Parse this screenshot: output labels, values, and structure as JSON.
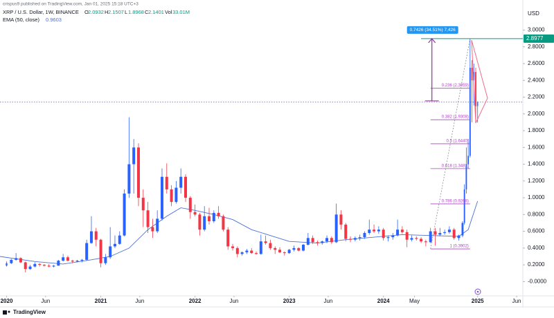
{
  "header": {
    "author_line": "crispus9 published on TradingView.com, Jan 01, 2025 15:18 UTC+3",
    "symbol": "XRP / U.S. Dollar, 1W, BINANCE",
    "quote_keys": [
      "O",
      "H",
      "L",
      "C",
      "Vol"
    ],
    "volume": "33.01M",
    "currency": "USD",
    "footer": "TradingView"
  },
  "chart_data": {
    "type": "candlestick",
    "x": [
      2020.0,
      2020.05,
      2020.1,
      2020.15,
      2020.2,
      2020.25,
      2020.3,
      2020.35,
      2020.4,
      2020.45,
      2020.5,
      2020.55,
      2020.6,
      2020.65,
      2020.7,
      2020.75,
      2020.8,
      2020.85,
      2020.9,
      2020.95,
      2021.0,
      2021.05,
      2021.1,
      2021.15,
      2021.2,
      2021.25,
      2021.3,
      2021.35,
      2021.4,
      2021.45,
      2021.5,
      2021.55,
      2021.6,
      2021.65,
      2021.7,
      2021.75,
      2021.8,
      2021.85,
      2021.9,
      2021.95,
      2022.0,
      2022.05,
      2022.1,
      2022.15,
      2022.2,
      2022.25,
      2022.3,
      2022.35,
      2022.4,
      2022.45,
      2022.5,
      2022.55,
      2022.6,
      2022.65,
      2022.7,
      2022.75,
      2022.8,
      2022.85,
      2022.9,
      2022.95,
      2023.0,
      2023.05,
      2023.1,
      2023.15,
      2023.2,
      2023.25,
      2023.3,
      2023.35,
      2023.4,
      2023.45,
      2023.5,
      2023.55,
      2023.6,
      2023.65,
      2023.7,
      2023.75,
      2023.8,
      2023.85,
      2023.9,
      2023.95,
      2024.0,
      2024.05,
      2024.1,
      2024.15,
      2024.2,
      2024.25,
      2024.3,
      2024.35,
      2024.4,
      2024.45,
      2024.5,
      2024.55,
      2024.6,
      2024.65,
      2024.7,
      2024.75,
      2024.8,
      2024.84,
      2024.86,
      2024.88,
      2024.9,
      2024.92,
      2024.94,
      2024.96,
      2024.98,
      2025.0
    ],
    "ohlc": [
      [
        0.19,
        0.24,
        0.18,
        0.22
      ],
      [
        0.22,
        0.27,
        0.21,
        0.26
      ],
      [
        0.26,
        0.34,
        0.25,
        0.28
      ],
      [
        0.28,
        0.29,
        0.22,
        0.23
      ],
      [
        0.23,
        0.24,
        0.11,
        0.15
      ],
      [
        0.15,
        0.2,
        0.14,
        0.18
      ],
      [
        0.18,
        0.23,
        0.17,
        0.21
      ],
      [
        0.21,
        0.22,
        0.18,
        0.2
      ],
      [
        0.2,
        0.21,
        0.18,
        0.19
      ],
      [
        0.19,
        0.21,
        0.17,
        0.18
      ],
      [
        0.18,
        0.2,
        0.17,
        0.19
      ],
      [
        0.19,
        0.26,
        0.19,
        0.25
      ],
      [
        0.25,
        0.33,
        0.24,
        0.29
      ],
      [
        0.29,
        0.31,
        0.24,
        0.25
      ],
      [
        0.25,
        0.26,
        0.22,
        0.24
      ],
      [
        0.24,
        0.26,
        0.23,
        0.25
      ],
      [
        0.25,
        0.27,
        0.23,
        0.26
      ],
      [
        0.26,
        0.5,
        0.25,
        0.46
      ],
      [
        0.46,
        0.78,
        0.45,
        0.6
      ],
      [
        0.6,
        0.64,
        0.42,
        0.5
      ],
      [
        0.5,
        0.51,
        0.17,
        0.22
      ],
      [
        0.22,
        0.33,
        0.2,
        0.29
      ],
      [
        0.29,
        0.65,
        0.27,
        0.42
      ],
      [
        0.42,
        0.55,
        0.4,
        0.45
      ],
      [
        0.45,
        0.6,
        0.44,
        0.55
      ],
      [
        0.55,
        1.1,
        0.54,
        1.05
      ],
      [
        1.05,
        1.96,
        1.0,
        1.4
      ],
      [
        1.4,
        1.7,
        1.05,
        1.6
      ],
      [
        1.6,
        1.65,
        0.9,
        1.0
      ],
      [
        1.0,
        1.1,
        0.65,
        0.85
      ],
      [
        0.85,
        0.95,
        0.58,
        0.65
      ],
      [
        0.65,
        0.75,
        0.52,
        0.6
      ],
      [
        0.6,
        0.85,
        0.58,
        0.75
      ],
      [
        0.75,
        1.35,
        0.73,
        1.25
      ],
      [
        1.25,
        1.41,
        1.05,
        1.1
      ],
      [
        1.1,
        1.15,
        0.9,
        0.95
      ],
      [
        0.95,
        1.2,
        0.93,
        1.12
      ],
      [
        1.12,
        1.35,
        1.05,
        1.25
      ],
      [
        1.25,
        1.28,
        0.95,
        1.0
      ],
      [
        1.0,
        1.02,
        0.75,
        0.83
      ],
      [
        0.83,
        0.92,
        0.78,
        0.8
      ],
      [
        0.8,
        0.82,
        0.55,
        0.62
      ],
      [
        0.62,
        0.9,
        0.6,
        0.78
      ],
      [
        0.78,
        0.88,
        0.68,
        0.72
      ],
      [
        0.72,
        0.85,
        0.7,
        0.82
      ],
      [
        0.82,
        0.9,
        0.75,
        0.78
      ],
      [
        0.78,
        0.8,
        0.6,
        0.62
      ],
      [
        0.62,
        0.65,
        0.38,
        0.42
      ],
      [
        0.42,
        0.45,
        0.37,
        0.4
      ],
      [
        0.4,
        0.42,
        0.29,
        0.33
      ],
      [
        0.33,
        0.36,
        0.31,
        0.35
      ],
      [
        0.35,
        0.39,
        0.33,
        0.37
      ],
      [
        0.37,
        0.4,
        0.33,
        0.34
      ],
      [
        0.34,
        0.36,
        0.32,
        0.33
      ],
      [
        0.33,
        0.56,
        0.32,
        0.48
      ],
      [
        0.48,
        0.55,
        0.44,
        0.46
      ],
      [
        0.46,
        0.5,
        0.38,
        0.4
      ],
      [
        0.4,
        0.42,
        0.33,
        0.38
      ],
      [
        0.38,
        0.41,
        0.34,
        0.35
      ],
      [
        0.35,
        0.36,
        0.31,
        0.34
      ],
      [
        0.34,
        0.39,
        0.33,
        0.38
      ],
      [
        0.38,
        0.43,
        0.36,
        0.4
      ],
      [
        0.4,
        0.41,
        0.36,
        0.37
      ],
      [
        0.37,
        0.45,
        0.36,
        0.44
      ],
      [
        0.44,
        0.58,
        0.43,
        0.52
      ],
      [
        0.52,
        0.55,
        0.45,
        0.47
      ],
      [
        0.47,
        0.49,
        0.43,
        0.46
      ],
      [
        0.46,
        0.49,
        0.44,
        0.48
      ],
      [
        0.48,
        0.55,
        0.46,
        0.52
      ],
      [
        0.52,
        0.54,
        0.45,
        0.47
      ],
      [
        0.47,
        0.93,
        0.46,
        0.8
      ],
      [
        0.8,
        0.85,
        0.62,
        0.68
      ],
      [
        0.68,
        0.7,
        0.48,
        0.51
      ],
      [
        0.51,
        0.54,
        0.47,
        0.5
      ],
      [
        0.5,
        0.54,
        0.48,
        0.52
      ],
      [
        0.52,
        0.56,
        0.49,
        0.53
      ],
      [
        0.53,
        0.6,
        0.51,
        0.58
      ],
      [
        0.58,
        0.74,
        0.56,
        0.62
      ],
      [
        0.62,
        0.68,
        0.58,
        0.6
      ],
      [
        0.6,
        0.66,
        0.57,
        0.62
      ],
      [
        0.62,
        0.64,
        0.49,
        0.52
      ],
      [
        0.52,
        0.55,
        0.48,
        0.53
      ],
      [
        0.53,
        0.58,
        0.5,
        0.55
      ],
      [
        0.55,
        0.74,
        0.54,
        0.62
      ],
      [
        0.62,
        0.66,
        0.57,
        0.59
      ],
      [
        0.59,
        0.62,
        0.41,
        0.5
      ],
      [
        0.5,
        0.55,
        0.48,
        0.52
      ],
      [
        0.52,
        0.54,
        0.49,
        0.51
      ],
      [
        0.51,
        0.53,
        0.46,
        0.48
      ],
      [
        0.48,
        0.5,
        0.42,
        0.47
      ],
      [
        0.47,
        0.64,
        0.46,
        0.6
      ],
      [
        0.6,
        0.64,
        0.43,
        0.56
      ],
      [
        0.56,
        0.64,
        0.54,
        0.58
      ],
      [
        0.58,
        0.62,
        0.56,
        0.59
      ],
      [
        0.59,
        0.66,
        0.57,
        0.62
      ],
      [
        0.62,
        0.64,
        0.5,
        0.52
      ],
      [
        0.52,
        0.56,
        0.49,
        0.55
      ],
      [
        0.55,
        0.72,
        0.53,
        0.7
      ],
      [
        0.7,
        1.16,
        0.68,
        1.1
      ],
      [
        1.1,
        1.6,
        1.05,
        1.4
      ],
      [
        1.4,
        1.7,
        1.35,
        1.5
      ],
      [
        1.5,
        2.9,
        1.48,
        2.55
      ],
      [
        2.55,
        2.64,
        1.9,
        2.4
      ],
      [
        2.4,
        2.6,
        2.1,
        2.5
      ],
      [
        2.5,
        2.55,
        1.9,
        2.09
      ],
      [
        2.0932,
        2.1507,
        1.8968,
        2.1401
      ]
    ],
    "up_color": "#2962ff",
    "down_color": "#f23645",
    "ema": {
      "name": "EMA (50, close)",
      "color": "#4a6fd8",
      "x": [
        2019.93,
        2020.3,
        2020.6,
        2020.9,
        2021.1,
        2021.3,
        2021.5,
        2021.7,
        2021.85,
        2022.0,
        2022.2,
        2022.4,
        2022.6,
        2022.8,
        2023.0,
        2023.3,
        2023.6,
        2023.9,
        2024.2,
        2024.5,
        2024.8,
        2024.9,
        2025.0
      ],
      "values": [
        0.3,
        0.24,
        0.21,
        0.26,
        0.3,
        0.4,
        0.62,
        0.78,
        0.88,
        0.85,
        0.8,
        0.74,
        0.62,
        0.55,
        0.48,
        0.46,
        0.5,
        0.53,
        0.56,
        0.55,
        0.54,
        0.62,
        0.9603
      ]
    },
    "fib_zero": 2.8977,
    "fib_zero_color": "#089981",
    "fib_color": "#b040c8",
    "fib_levels": [
      {
        "label": "0.236 (2.3059)",
        "price": 2.3059
      },
      {
        "label": "0.382 (1.9308)",
        "price": 1.9308
      },
      {
        "label": "0.5 (1.6440)",
        "price": 1.644
      },
      {
        "label": "0.618 (1.3481)",
        "price": 1.3481
      },
      {
        "label": "0.786 (0.9268)",
        "price": 0.9268
      },
      {
        "label": "1 (0.3902)",
        "price": 0.3902
      }
    ],
    "measure": {
      "label": "0.7426 (34.51%) 7,426",
      "change": 0.7426,
      "color": "#9c27b0"
    },
    "xlim": [
      2019.93,
      2025.48
    ],
    "ylim": [
      -0.17,
      3.21
    ],
    "xticks": [
      2020,
      {
        "value": 2020.414,
        "label": "Jun"
      },
      2021,
      {
        "value": 2021.414,
        "label": "Jun"
      },
      2022,
      {
        "value": 2022.414,
        "label": "Jun"
      },
      2023,
      {
        "value": 2023.414,
        "label": "Jun"
      },
      2024,
      {
        "value": 2024.33,
        "label": "May"
      },
      2025,
      {
        "value": 2025.414,
        "label": "Jun"
      }
    ],
    "yticks": [
      {
        "value": 3,
        "label": "3.0000"
      },
      {
        "value": 2.8,
        "label": "2.8000"
      },
      {
        "value": 2.6,
        "label": "2.6000"
      },
      {
        "value": 2.4,
        "label": "2.4000"
      },
      {
        "value": 2.2,
        "label": "2.2000"
      },
      {
        "value": 2,
        "label": "2.0000"
      },
      {
        "value": 1.8,
        "label": "1.8000"
      },
      {
        "value": 1.6,
        "label": "1.6000"
      },
      {
        "value": 1.4,
        "label": "1.4000"
      },
      {
        "value": 1.2,
        "label": "1.2000"
      },
      {
        "value": 1,
        "label": "1.0000"
      },
      {
        "value": 0.8,
        "label": "0.8000"
      },
      {
        "value": 0.6,
        "label": "0.6000"
      },
      {
        "value": 0.4,
        "label": "0.4000"
      },
      {
        "value": 0.2,
        "label": "0.2000"
      },
      {
        "value": 0,
        "label": "-0.0000"
      }
    ],
    "grid": false
  }
}
